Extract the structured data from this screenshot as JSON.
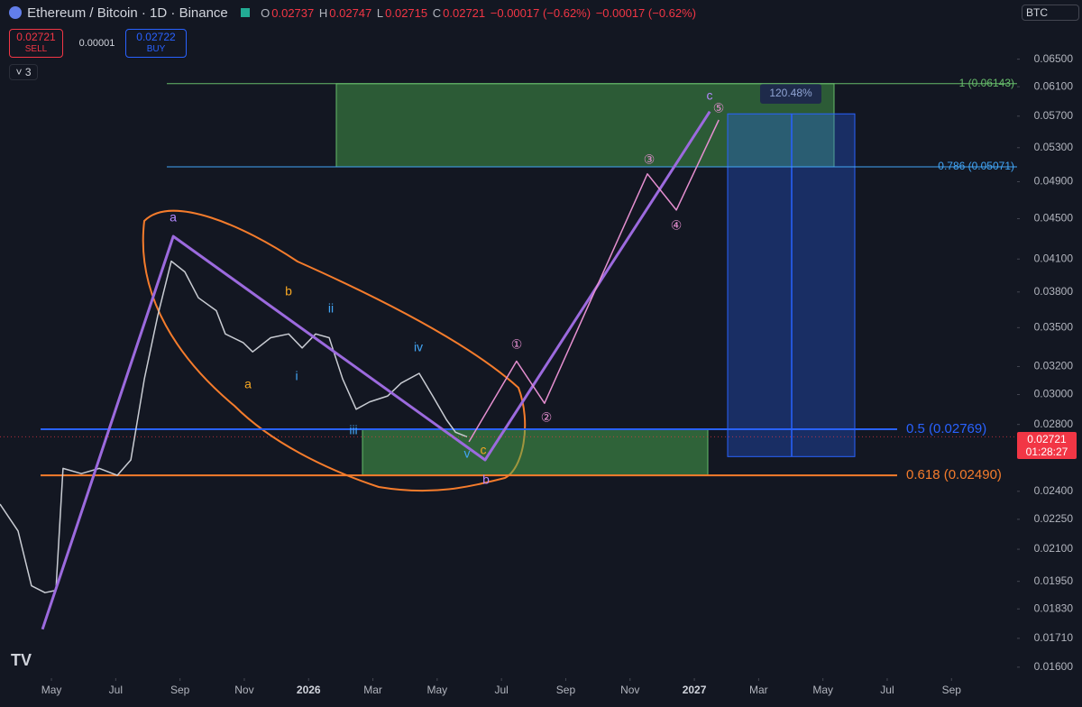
{
  "header": {
    "symbol": "Ethereum / Bitcoin · 1D · Binance",
    "o_label": "O",
    "open": "0.02737",
    "h_label": "H",
    "high": "0.02747",
    "l_label": "L",
    "low": "0.02715",
    "c_label": "C",
    "close": "0.02721",
    "change": "−0.00017 (−0.62%)",
    "change2": "−0.00017 (−0.62%)",
    "sell": "0.02721",
    "sell_label": "SELL",
    "spread": "0.00001",
    "buy": "0.02722",
    "buy_label": "BUY",
    "indicators": "3",
    "currency": "BTC",
    "countdown": "01:28:27"
  },
  "chart_data": {
    "type": "line",
    "log_scale": true,
    "grid": false,
    "xlim": [
      -1.6,
      30.04
    ],
    "ylim": [
      0.0156,
      0.0745
    ],
    "xticks": [
      {
        "value": 0,
        "label": "May"
      },
      {
        "value": 2,
        "label": "Jul"
      },
      {
        "value": 4,
        "label": "Sep"
      },
      {
        "value": 6,
        "label": "Nov"
      },
      {
        "value": 8,
        "label": "2026"
      },
      {
        "value": 10,
        "label": "Mar"
      },
      {
        "value": 12,
        "label": "May"
      },
      {
        "value": 14,
        "label": "Jul"
      },
      {
        "value": 16,
        "label": "Sep"
      },
      {
        "value": 18,
        "label": "Nov"
      },
      {
        "value": 20,
        "label": "2027"
      },
      {
        "value": 22,
        "label": "Mar"
      },
      {
        "value": 24,
        "label": "May"
      },
      {
        "value": 26,
        "label": "Jul"
      },
      {
        "value": 28,
        "label": "Sep"
      }
    ],
    "yticks": [
      {
        "value": 0.065,
        "label": "0.06500"
      },
      {
        "value": 0.061,
        "label": "0.06100"
      },
      {
        "value": 0.057,
        "label": "0.05700"
      },
      {
        "value": 0.053,
        "label": "0.05300"
      },
      {
        "value": 0.049,
        "label": "0.04900"
      },
      {
        "value": 0.045,
        "label": "0.04500"
      },
      {
        "value": 0.041,
        "label": "0.04100"
      },
      {
        "value": 0.038,
        "label": "0.03800"
      },
      {
        "value": 0.035,
        "label": "0.03500"
      },
      {
        "value": 0.032,
        "label": "0.03200"
      },
      {
        "value": 0.03,
        "label": "0.03000"
      },
      {
        "value": 0.028,
        "label": "0.02800"
      },
      {
        "value": 0.024,
        "label": "0.02400"
      },
      {
        "value": 0.0225,
        "label": "0.02250"
      },
      {
        "value": 0.021,
        "label": "0.02100"
      },
      {
        "value": 0.0195,
        "label": "0.01950"
      },
      {
        "value": 0.0183,
        "label": "0.01830"
      },
      {
        "value": 0.0171,
        "label": "0.01710"
      },
      {
        "value": 0.016,
        "label": "0.01600"
      }
    ],
    "series": [
      {
        "color": "#c9ccd3",
        "x": [
          -1.6,
          -1.04,
          -0.62,
          -0.2,
          0.14,
          0.36,
          0.93,
          1.49,
          2.05,
          2.47,
          2.89,
          3.31,
          3.73,
          4.15,
          4.57,
          5.13,
          5.41,
          5.97,
          6.26,
          6.82,
          7.38,
          7.8,
          8.22,
          8.64,
          9.06,
          9.48,
          9.9,
          10.46,
          10.88,
          11.44,
          11.86,
          12.29,
          12.57,
          12.93
        ],
        "values": [
          0.0233,
          0.0219,
          0.0193,
          0.019,
          0.0191,
          0.0253,
          0.025,
          0.0253,
          0.0249,
          0.0258,
          0.0311,
          0.036,
          0.0408,
          0.0398,
          0.0375,
          0.0364,
          0.0345,
          0.0338,
          0.0331,
          0.0342,
          0.0345,
          0.0334,
          0.0345,
          0.0342,
          0.0311,
          0.029,
          0.0295,
          0.0299,
          0.0308,
          0.0315,
          0.0299,
          0.0283,
          0.0275,
          0.02721
        ]
      }
    ],
    "projections": [
      {
        "color": "#9c6ade",
        "width": 3,
        "x": [
          -0.28,
          3.79,
          13.49,
          20.48
        ],
        "values": [
          0.01746,
          0.0432,
          0.0258,
          0.0576
        ]
      },
      {
        "color": "#e58fd0",
        "width": 1.5,
        "x": [
          12.99,
          14.47,
          15.34,
          18.54,
          19.44,
          20.76
        ],
        "values": [
          0.0269,
          0.0324,
          0.0294,
          0.0499,
          0.0459,
          0.0565
        ]
      }
    ],
    "levels": [
      {
        "label": "1 (0.06143)",
        "value": 0.06143,
        "color": "#66bb6a"
      },
      {
        "label": "0.786 (0.05071)",
        "value": 0.05071,
        "color": "#42a5f5"
      },
      {
        "label": "0.5 (0.02769)",
        "value": 0.02769,
        "color": "#2962ff"
      },
      {
        "label": "0.618 (0.02490)",
        "value": 0.0249,
        "color": "#f57c2c"
      }
    ],
    "measure": {
      "label": "120.48%",
      "low": 0.026,
      "high": 0.0573,
      "color": "#2962ff"
    },
    "wave_labels": [
      {
        "text": "a",
        "color": "#b388ff"
      },
      {
        "text": "a",
        "color": "#f5a623"
      },
      {
        "text": "b",
        "color": "#f5a623"
      },
      {
        "text": "i",
        "color": "#42a5f5"
      },
      {
        "text": "ii",
        "color": "#42a5f5"
      },
      {
        "text": "iii",
        "color": "#42a5f5"
      },
      {
        "text": "iv",
        "color": "#42a5f5"
      },
      {
        "text": "v",
        "color": "#42a5f5"
      },
      {
        "text": "c",
        "color": "#f5a623"
      },
      {
        "text": "b",
        "color": "#b388ff"
      },
      {
        "text": "c",
        "color": "#b388ff"
      },
      {
        "text": "①",
        "color": "#e58fd0"
      },
      {
        "text": "②",
        "color": "#e58fd0"
      },
      {
        "text": "③",
        "color": "#e58fd0"
      },
      {
        "text": "④",
        "color": "#e58fd0"
      },
      {
        "text": "⑤",
        "color": "#e58fd0"
      }
    ]
  }
}
